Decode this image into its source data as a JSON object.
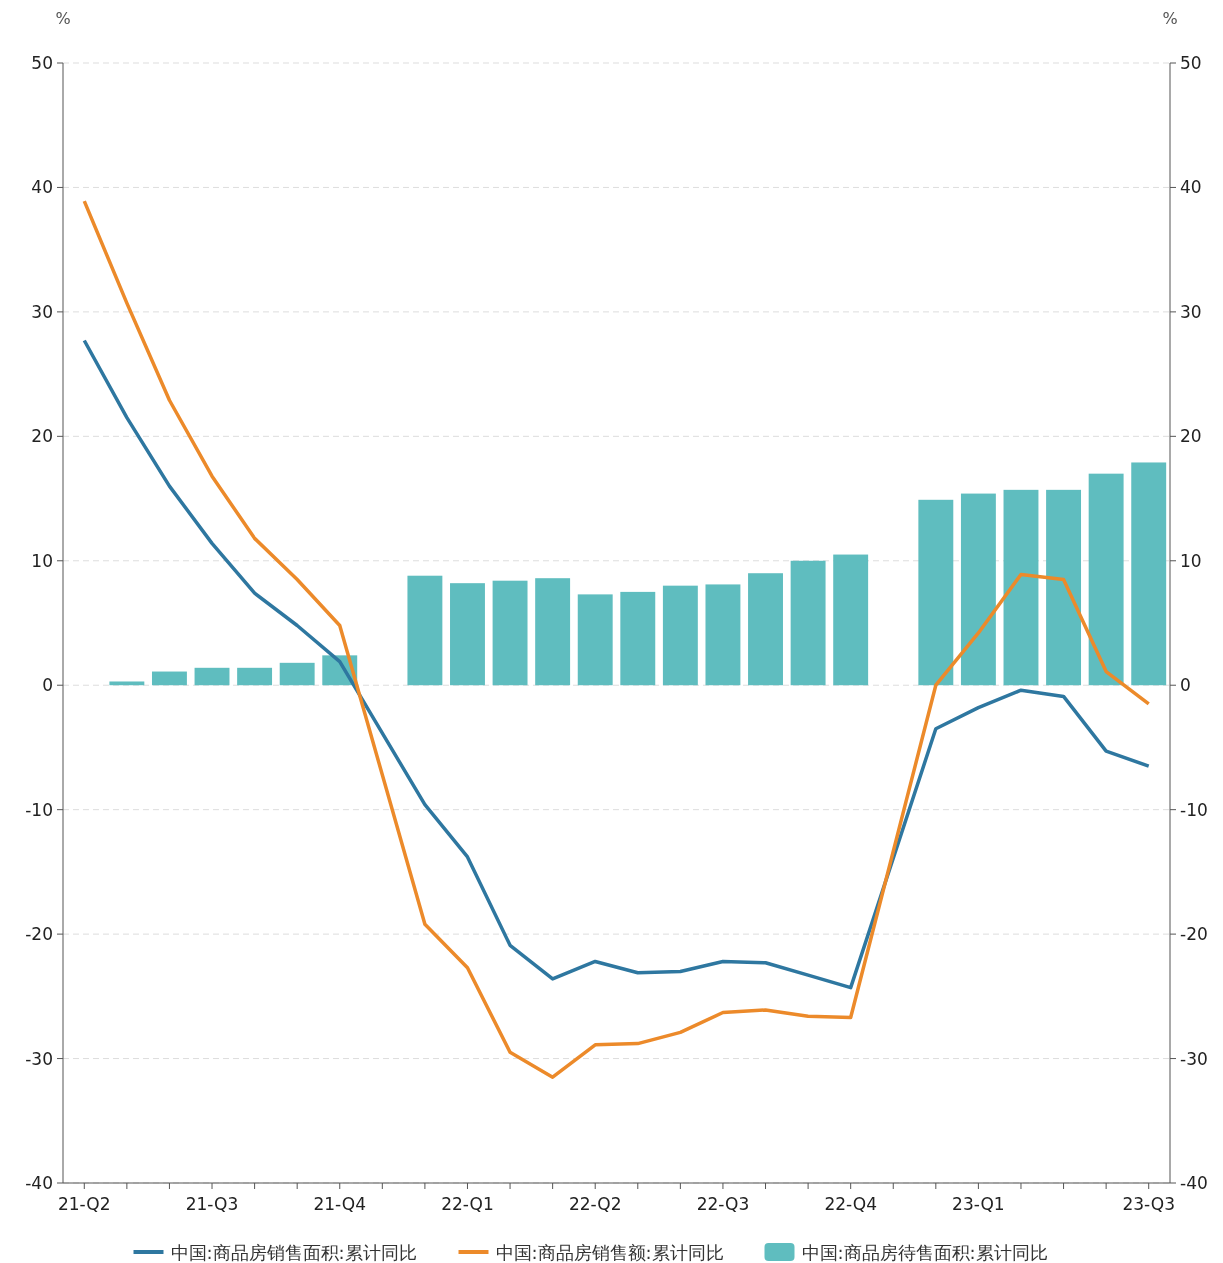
{
  "chart_data": {
    "type": "bar",
    "categories": [
      "21-Q2",
      null,
      null,
      "21-Q3",
      null,
      null,
      "21-Q4",
      null,
      null,
      "22-Q1",
      null,
      null,
      "22-Q2",
      null,
      null,
      "22-Q3",
      null,
      null,
      "22-Q4",
      null,
      null,
      "23-Q1",
      null,
      null,
      null,
      "23-Q3"
    ],
    "series": [
      {
        "name": "中国:商品房销售面积:累计同比",
        "type": "line",
        "color": "#2e77a0",
        "values": [
          27.7,
          21.5,
          16.0,
          11.4,
          7.4,
          4.8,
          1.9,
          null,
          -9.6,
          -13.8,
          -20.9,
          -23.6,
          -22.2,
          -23.1,
          -23.0,
          -22.2,
          -22.3,
          -23.3,
          -24.3,
          null,
          -3.5,
          -1.8,
          -0.4,
          -0.9,
          -5.3,
          -6.5
        ]
      },
      {
        "name": "中国:商品房销售额:累计同比",
        "type": "line",
        "color": "#ec8a2a",
        "values": [
          38.9,
          30.7,
          22.9,
          16.8,
          11.8,
          8.5,
          4.8,
          null,
          -19.2,
          -22.7,
          -29.5,
          -31.5,
          -28.9,
          -28.8,
          -27.9,
          -26.3,
          -26.1,
          -26.6,
          -26.7,
          null,
          0.0,
          4.2,
          8.9,
          8.5,
          1.1,
          -1.5
        ]
      },
      {
        "name": "中国:商品房待售面积:累计同比",
        "color": "#5fbdbf",
        "values": [
          null,
          0.3,
          1.1,
          1.4,
          1.4,
          1.8,
          2.4,
          null,
          8.8,
          8.2,
          8.4,
          8.6,
          7.3,
          7.5,
          8.0,
          8.1,
          9.0,
          10.0,
          10.5,
          null,
          14.9,
          15.4,
          15.7,
          15.7,
          17.0,
          17.9
        ]
      }
    ],
    "ylabel": "%",
    "y2label": "%",
    "ylim": [
      -40,
      50
    ],
    "yticks": [
      -40,
      -30,
      -20,
      -10,
      0,
      10,
      20,
      30,
      40,
      50
    ],
    "y2lim": [
      -40,
      50
    ],
    "y2ticks": [
      -40,
      -30,
      -20,
      -10,
      0,
      10,
      20,
      30,
      40,
      50
    ],
    "grid": "y",
    "legend": "bottom",
    "marker": "none",
    "line_style": "solid"
  }
}
